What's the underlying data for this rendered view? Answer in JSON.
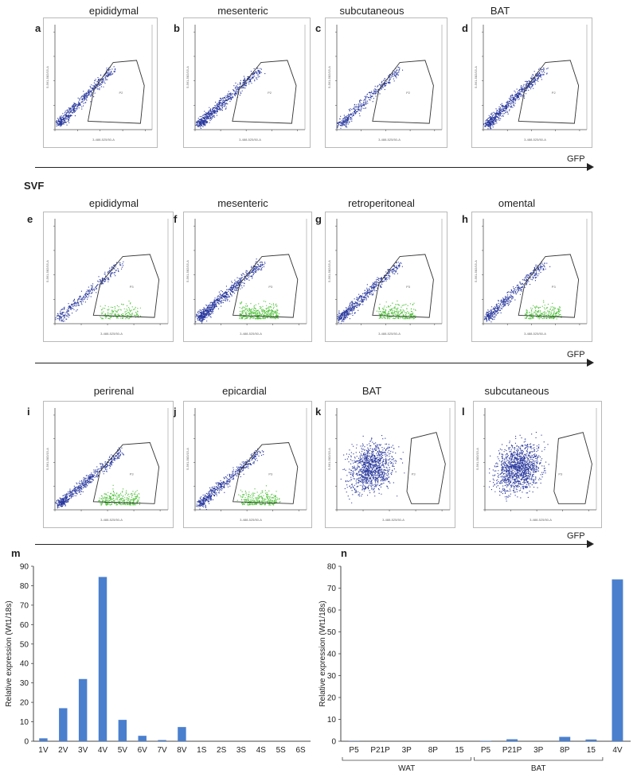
{
  "rows": [
    {
      "panels": [
        {
          "letter": "a",
          "title": "epididymal",
          "has_green": false,
          "blue_density": 0.8,
          "gate_label": "P2",
          "x_axis_label": "3-488-525/50-A",
          "y_axis_label": "5-561-582/15-A"
        },
        {
          "letter": "b",
          "title": "mesenteric",
          "has_green": false,
          "blue_density": 1.0,
          "gate_label": "P2",
          "x_axis_label": "3-488-525/50-A",
          "y_axis_label": "5-561-582/15-A"
        },
        {
          "letter": "c",
          "title": "subcutaneous",
          "has_green": false,
          "blue_density": 0.6,
          "gate_label": "P2",
          "x_axis_label": "3-488-525/50-A",
          "y_axis_label": "5-561-582/15-A"
        },
        {
          "letter": "d",
          "title": "BAT",
          "has_green": false,
          "blue_density": 1.0,
          "gate_label": "P2",
          "x_axis_label": "3-488-525/50-A",
          "y_axis_label": "5-561-582/15-A"
        }
      ],
      "axis_label": "GFP"
    },
    {
      "section_title": "SVF",
      "panels": [
        {
          "letter": "e",
          "title": "epididymal",
          "has_green": true,
          "blue_density": 0.5,
          "gate_label": "P3",
          "x_axis_label": "3-488-525/50-A",
          "y_axis_label": "5-561-582/15-A"
        },
        {
          "letter": "f",
          "title": "mesenteric",
          "has_green": true,
          "blue_density": 1.1,
          "gate_label": "P3",
          "x_axis_label": "3-488-525/50-A",
          "y_axis_label": "5-561-582/15-A"
        },
        {
          "letter": "g",
          "title": "retroperitoneal",
          "has_green": true,
          "blue_density": 0.8,
          "gate_label": "P3",
          "x_axis_label": "3-488-525/50-A",
          "y_axis_label": "5-561-582/15-A"
        },
        {
          "letter": "h",
          "title": "omental",
          "has_green": true,
          "blue_density": 0.7,
          "gate_label": "P3",
          "x_axis_label": "3-488-525/50-A",
          "y_axis_label": "5-561-582/15-A"
        }
      ],
      "axis_label": "GFP"
    },
    {
      "panels": [
        {
          "letter": "i",
          "title": "perirenal",
          "has_green": true,
          "blue_density": 0.9,
          "gate_label": "P3",
          "x_axis_label": "3-488-525/50-A",
          "y_axis_label": "5-561-582/15-A"
        },
        {
          "letter": "j",
          "title": "epicardial",
          "has_green": true,
          "blue_density": 0.8,
          "gate_label": "P3",
          "x_axis_label": "3-488-525/50-A",
          "y_axis_label": "5-561-582/15-A"
        },
        {
          "letter": "k",
          "title": "BAT",
          "has_green": false,
          "blue_density": 1.6,
          "gate_label": "P3",
          "x_axis_label": "3-488-525/50-A",
          "y_axis_label": "5-561-582/15-A"
        },
        {
          "letter": "l",
          "title": "subcutaneous",
          "has_green": false,
          "blue_density": 1.8,
          "gate_label": "P3",
          "x_axis_label": "3-488-525/50-A",
          "y_axis_label": "5-561-582/15-A"
        }
      ],
      "axis_label": "GFP"
    }
  ],
  "colors": {
    "blue": "#2b3a9e",
    "green": "#4fc23a",
    "bar": "#4a7fce"
  },
  "chart_data": [
    {
      "letter": "m",
      "type": "bar",
      "title": "",
      "ylabel": "Relative expression (Wt1/18s)",
      "xlabel": "",
      "ylim": [
        0,
        90
      ],
      "yticks": [
        0,
        10,
        20,
        30,
        40,
        50,
        60,
        70,
        80,
        90
      ],
      "categories": [
        "1V",
        "2V",
        "3V",
        "4V",
        "5V",
        "6V",
        "7V",
        "8V",
        "1S",
        "2S",
        "3S",
        "4S",
        "5S",
        "6S"
      ],
      "values": [
        1.5,
        17,
        32,
        84.5,
        11,
        2.8,
        0.6,
        7.3,
        0,
        0,
        0,
        0,
        0,
        0
      ]
    },
    {
      "letter": "n",
      "type": "bar",
      "title": "",
      "ylabel": "Relative expression (Wt1/18s)",
      "xlabel": "",
      "ylim": [
        0,
        80
      ],
      "yticks": [
        0,
        10,
        20,
        30,
        40,
        50,
        60,
        70,
        80
      ],
      "categories": [
        "P5",
        "P21P",
        "3P",
        "8P",
        "15",
        "P5",
        "P21P",
        "3P",
        "8P",
        "15",
        "4V"
      ],
      "values": [
        0.1,
        0,
        0,
        0,
        0,
        0.2,
        0.9,
        0,
        2,
        0.8,
        74
      ],
      "groups": [
        {
          "label": "WAT",
          "from": 0,
          "to": 4
        },
        {
          "label": "BAT",
          "from": 5,
          "to": 9
        }
      ]
    }
  ]
}
